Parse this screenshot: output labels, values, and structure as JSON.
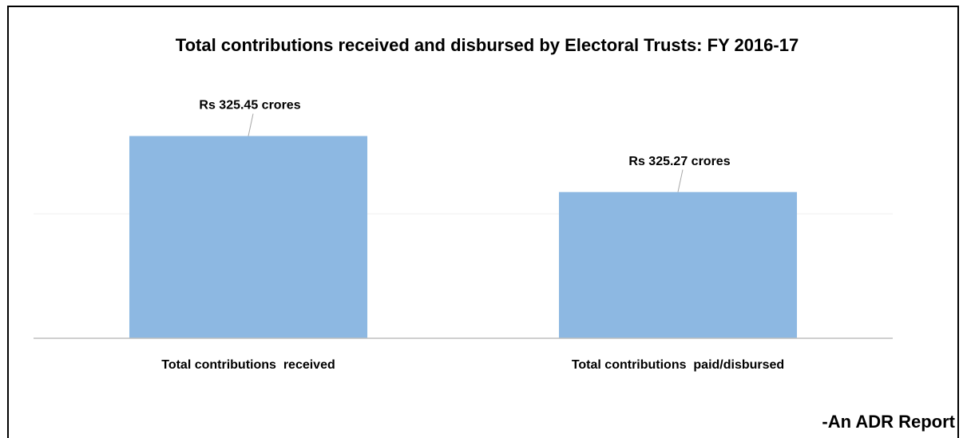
{
  "chart_data": {
    "type": "bar",
    "title": "Total contributions received and disbursed by Electoral Trusts: FY 2016-17",
    "categories": [
      "Total contributions  received",
      "Total contributions  paid/disbursed"
    ],
    "values": [
      325.45,
      325.27
    ],
    "value_labels": [
      "Rs 325.45 crores",
      "Rs 325.27 crores"
    ],
    "color": "#8db8e2",
    "ylim": [
      324.8,
      325.6
    ],
    "yticks": [
      325.2
    ],
    "grid": true,
    "annotation": "-An ADR Report"
  }
}
